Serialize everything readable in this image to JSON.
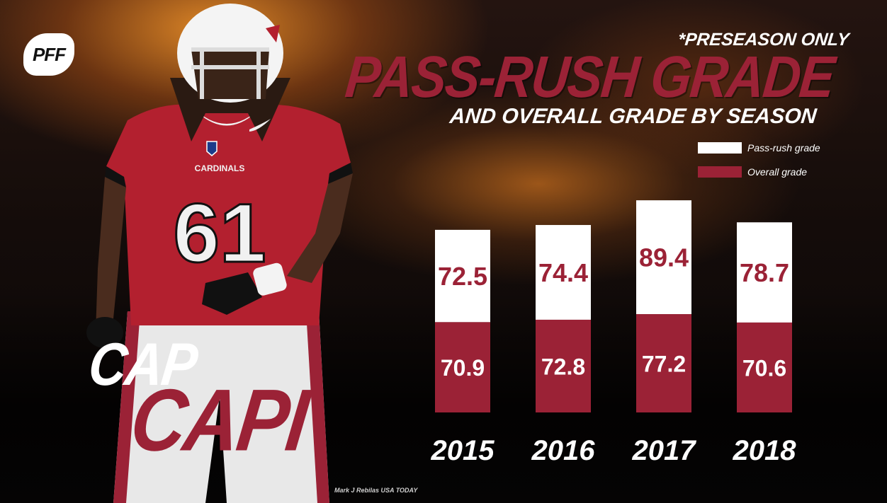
{
  "brand": {
    "logo_text": "PFF"
  },
  "title": {
    "note": "*PRESEASON ONLY",
    "main": "PASS-RUSH GRADE",
    "sub": "AND OVERALL GRADE BY SEASON"
  },
  "player": {
    "first_name": "CAP",
    "last_name": "CAPI",
    "jersey_number": "61",
    "team_text": "CARDINALS"
  },
  "credit": "Mark J Rebilas USA TODAY",
  "colors": {
    "pass_rush": "#ffffff",
    "overall": "#9b2236",
    "accent": "#9b2236"
  },
  "chart_data": {
    "type": "bar",
    "categories": [
      "2015",
      "2016",
      "2017",
      "2018"
    ],
    "series": [
      {
        "name": "Pass-rush grade",
        "values": [
          72.5,
          74.4,
          89.4,
          78.7
        ],
        "color": "#ffffff"
      },
      {
        "name": "Overall grade",
        "values": [
          70.9,
          72.8,
          77.2,
          70.6
        ],
        "color": "#9b2236"
      }
    ],
    "legend_position": "top-right",
    "grid": false
  }
}
